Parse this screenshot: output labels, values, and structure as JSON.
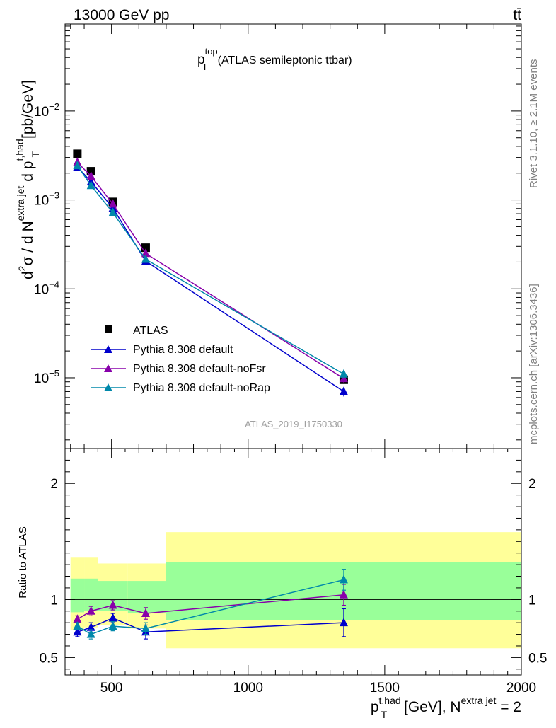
{
  "header": {
    "energy_label": "13000 GeV pp",
    "process_label": "tt̄"
  },
  "side_labels": {
    "rivet": "Rivet 3.1.10, ≥ 2.1M events",
    "mcplots": "mcplots.cern.ch [arXiv:1306.3436]"
  },
  "colors": {
    "data": "#000000",
    "default": "#0000cc",
    "noFsr": "#8800aa",
    "noRap": "#0088aa",
    "band_yellow": "#ffff99",
    "band_green": "#99ff99"
  },
  "chart_data": [
    {
      "type": "scatter",
      "title_main": "p",
      "title_sup": "top",
      "title_sub": "T",
      "title_rest": "(ATLAS semileptonic ttbar)",
      "analysis_label": "ATLAS_2019_I1750330",
      "ylabel": "d²σ / d N^{extra jet} d p_T^{t,had} [pb/GeV]",
      "ylabel_parts": {
        "d2": "d",
        "two": "2",
        "sigma_over": "σ /  d N",
        "extra_jet": "extra jet",
        "dp": " d p",
        "t_had": "t,had",
        "T": "T",
        "unit": " [pb/GeV]"
      },
      "yscale": "log",
      "ylim": [
        1.6e-06,
        0.095
      ],
      "xlim": [
        330,
        2000
      ],
      "yticks": [
        {
          "value": 1e-05,
          "base": "10",
          "exp": "−5"
        },
        {
          "value": 0.0001,
          "base": "10",
          "exp": "−4"
        },
        {
          "value": 0.001,
          "base": "10",
          "exp": "−3"
        },
        {
          "value": 0.01,
          "base": "10",
          "exp": "−2"
        }
      ],
      "legend_position": "lower-left",
      "series": [
        {
          "name": "ATLAS",
          "key": "data",
          "marker": "square",
          "x": [
            375,
            425,
            505,
            625,
            1350
          ],
          "y": [
            0.0033,
            0.0021,
            0.00095,
            0.00029,
            9.5e-06
          ]
        },
        {
          "name": "Pythia 8.308 default",
          "key": "default",
          "marker": "triangle",
          "x": [
            375,
            425,
            505,
            625,
            1350
          ],
          "y": [
            0.00235,
            0.0016,
            0.00081,
            0.000205,
            7e-06
          ],
          "err": [
            0.07,
            0.05,
            0.04,
            0.06,
            0.12
          ]
        },
        {
          "name": "Pythia 8.308 default-noFsr",
          "key": "noFsr",
          "marker": "triangle",
          "x": [
            375,
            425,
            505,
            625,
            1350
          ],
          "y": [
            0.00265,
            0.00185,
            0.0009,
            0.00025,
            9.8e-06
          ],
          "err": [
            0.06,
            0.05,
            0.04,
            0.06,
            0.1
          ]
        },
        {
          "name": "Pythia 8.308 default-noRap",
          "key": "noRap",
          "marker": "triangle",
          "x": [
            375,
            425,
            505,
            625,
            1350
          ],
          "y": [
            0.00243,
            0.00145,
            0.00072,
            0.000215,
            1.1e-05
          ],
          "err": [
            0.06,
            0.05,
            0.04,
            0.06,
            0.1
          ]
        }
      ]
    },
    {
      "type": "scatter",
      "ylabel": "Ratio to ATLAS",
      "xlabel_main": "p",
      "xlabel_sup": "t,had",
      "xlabel_sub": "T",
      "xlabel_mid": " [GeV], N",
      "xlabel_sup2": "extra jet",
      "xlabel_end": " = 2",
      "xlim": [
        330,
        2000
      ],
      "ylim": [
        0.35,
        2.3
      ],
      "xticks": [
        {
          "value": 500,
          "label": "500"
        },
        {
          "value": 1000,
          "label": "1000"
        },
        {
          "value": 1500,
          "label": "1500"
        },
        {
          "value": 2000,
          "label": "2000"
        }
      ],
      "yticks": [
        {
          "value": 0.5,
          "label": "0.5"
        },
        {
          "value": 1,
          "label": "1"
        },
        {
          "value": 2,
          "label": "2"
        }
      ],
      "bands": [
        {
          "x0": 350,
          "x1": 400,
          "yellow": [
            0.74,
            1.36
          ],
          "green": [
            0.89,
            1.18
          ]
        },
        {
          "x0": 400,
          "x1": 450,
          "yellow": [
            0.76,
            1.36
          ],
          "green": [
            0.9,
            1.18
          ]
        },
        {
          "x0": 450,
          "x1": 560,
          "yellow": [
            0.78,
            1.31
          ],
          "green": [
            0.9,
            1.16
          ]
        },
        {
          "x0": 560,
          "x1": 700,
          "yellow": [
            0.75,
            1.31
          ],
          "green": [
            0.88,
            1.16
          ]
        },
        {
          "x0": 700,
          "x1": 2000,
          "yellow": [
            0.58,
            1.58
          ],
          "green": [
            0.82,
            1.32
          ]
        }
      ],
      "series": [
        {
          "name": "Pythia 8.308 default",
          "key": "default",
          "x": [
            375,
            425,
            505,
            625,
            1350
          ],
          "y": [
            0.72,
            0.76,
            0.84,
            0.72,
            0.8
          ],
          "err": [
            0.04,
            0.04,
            0.04,
            0.06,
            0.12
          ]
        },
        {
          "name": "Pythia 8.308 default-noFsr",
          "key": "noFsr",
          "x": [
            375,
            425,
            505,
            625,
            1350
          ],
          "y": [
            0.83,
            0.9,
            0.95,
            0.88,
            1.04
          ],
          "err": [
            0.03,
            0.04,
            0.04,
            0.05,
            0.09
          ]
        },
        {
          "name": "Pythia 8.308 default-noRap",
          "key": "noRap",
          "x": [
            375,
            425,
            505,
            625,
            1350
          ],
          "y": [
            0.77,
            0.7,
            0.77,
            0.75,
            1.17
          ],
          "err": [
            0.03,
            0.04,
            0.04,
            0.05,
            0.09
          ]
        }
      ]
    }
  ]
}
